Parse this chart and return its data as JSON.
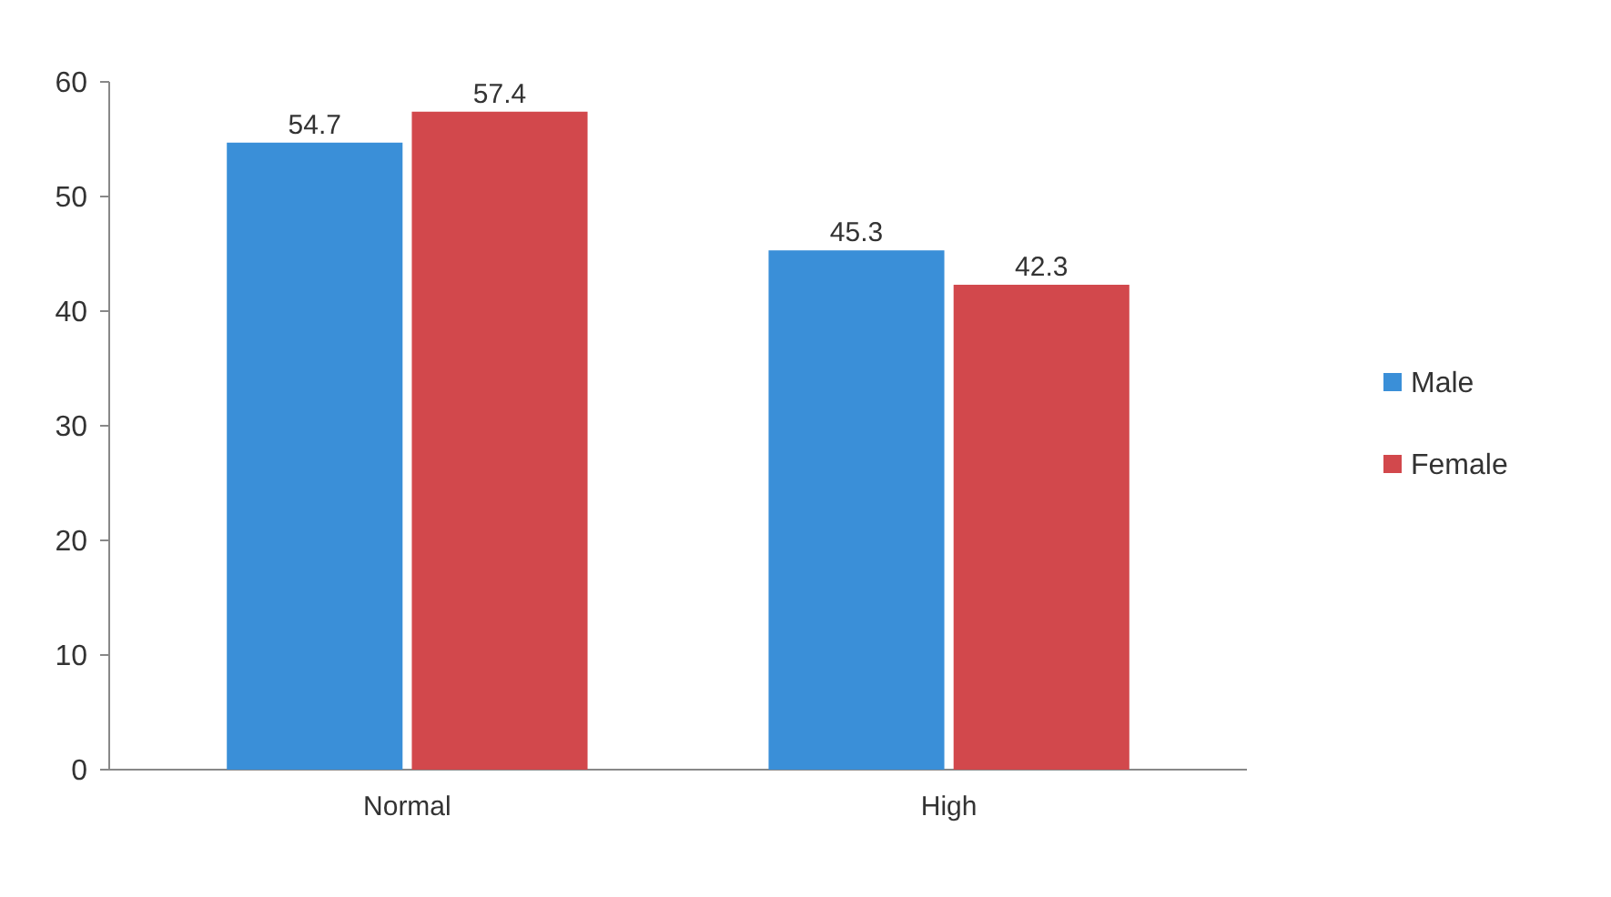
{
  "chart_data": {
    "type": "bar",
    "categories": [
      "Normal",
      "High"
    ],
    "series": [
      {
        "name": "Male",
        "color": "#3a8fd8",
        "values": [
          54.7,
          45.3
        ]
      },
      {
        "name": "Female",
        "color": "#d2484c",
        "values": [
          57.4,
          42.3
        ]
      }
    ],
    "ylim": [
      0,
      60
    ],
    "yticks": [
      0,
      10,
      20,
      30,
      40,
      50,
      60
    ],
    "grid": false,
    "legend": "right",
    "data_labels": true
  }
}
